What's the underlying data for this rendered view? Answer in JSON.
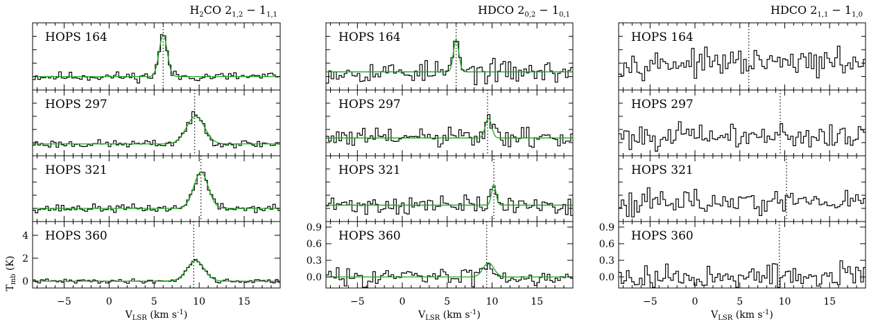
{
  "chart_data": {
    "type": "line",
    "x_range": [
      -8.5,
      19
    ],
    "x_ticks": [
      -5,
      0,
      5,
      10,
      15
    ],
    "xlabel": {
      "main": "V",
      "sub": "LSR",
      "rest": " (km s",
      "sup": "-1",
      "end": ")"
    },
    "ylabel": {
      "main": "T",
      "sub": "mb",
      "rest": " (K)"
    },
    "grid": false,
    "legend": "none",
    "colors": {
      "observed": "#000000",
      "fit": "#1aa81a",
      "vlsr_marker": "#000000"
    },
    "rows": [
      {
        "source": "HOPS 164",
        "vlsr": 6.0
      },
      {
        "source": "HOPS 297",
        "vlsr": 9.5
      },
      {
        "source": "HOPS 321",
        "vlsr": 10.2
      },
      {
        "source": "HOPS 360",
        "vlsr": 9.4
      }
    ],
    "columns": [
      {
        "title": {
          "pre": "H",
          "sub1": "2",
          "mid": "CO 2",
          "sub2": "1,2",
          "dash": " − 1",
          "sub3": "1,1"
        },
        "yticks_bottom": [
          "0",
          "2",
          "4"
        ],
        "ylim_bottom": [
          -0.6,
          5.2
        ],
        "panels": [
          {
            "source": "HOPS 164",
            "baseline": 0.2,
            "fit": {
              "amp": 0.62,
              "center": 6.0,
              "sigma": 0.45
            },
            "noise": 0.035,
            "seed": 11
          },
          {
            "source": "HOPS 297",
            "baseline": 0.18,
            "fit": {
              "amp": 0.42,
              "center": 9.6,
              "sigma": 1.0
            },
            "noise": 0.03,
            "seed": 23
          },
          {
            "source": "HOPS 321",
            "baseline": 0.2,
            "fit": {
              "amp": 0.55,
              "center": 10.2,
              "sigma": 0.8
            },
            "noise": 0.03,
            "seed": 37
          },
          {
            "source": "HOPS 360",
            "baseline": 0.08,
            "fit": {
              "amp": 0.32,
              "center": 9.6,
              "sigma": 0.95
            },
            "noise": 0.03,
            "seed": 41
          }
        ]
      },
      {
        "title": {
          "pre": "",
          "sub1": "",
          "mid": "HDCO 2",
          "sub2": "0,2",
          "dash": " − 1",
          "sub3": "0,1"
        },
        "yticks_bottom": [
          "0.0",
          "0.3",
          "0.6",
          "0.9"
        ],
        "ylim_bottom": [
          -0.2,
          1.0
        ],
        "panels": [
          {
            "source": "HOPS 164",
            "baseline": 0.27,
            "fit": {
              "amp": 0.48,
              "center": 6.0,
              "sigma": 0.3
            },
            "noise": 0.08,
            "seed": 53
          },
          {
            "source": "HOPS 297",
            "baseline": 0.27,
            "fit": {
              "amp": 0.3,
              "center": 9.6,
              "sigma": 0.35
            },
            "noise": 0.08,
            "seed": 61
          },
          {
            "source": "HOPS 321",
            "baseline": 0.25,
            "fit": {
              "amp": 0.3,
              "center": 10.2,
              "sigma": 0.25
            },
            "noise": 0.07,
            "seed": 71
          },
          {
            "source": "HOPS 360",
            "baseline": 0.15,
            "fit": {
              "amp": 0.16,
              "center": 9.6,
              "sigma": 0.6
            },
            "noise": 0.05,
            "seed": 83
          }
        ]
      },
      {
        "title": {
          "pre": "",
          "sub1": "",
          "mid": "HDCO 2",
          "sub2": "1,1",
          "dash": " − 1",
          "sub3": "1,0"
        },
        "yticks_bottom": [
          "0.0",
          "0.3",
          "0.6",
          "0.9"
        ],
        "ylim_bottom": [
          -0.2,
          1.0
        ],
        "panels": [
          {
            "source": "HOPS 164",
            "baseline": 0.4,
            "fit": null,
            "noise": 0.09,
            "seed": 97
          },
          {
            "source": "HOPS 297",
            "baseline": 0.3,
            "fit": null,
            "noise": 0.09,
            "seed": 101
          },
          {
            "source": "HOPS 321",
            "baseline": 0.3,
            "fit": null,
            "noise": 0.09,
            "seed": 113
          },
          {
            "source": "HOPS 360",
            "baseline": 0.15,
            "fit": null,
            "noise": 0.07,
            "seed": 127
          }
        ]
      }
    ]
  }
}
